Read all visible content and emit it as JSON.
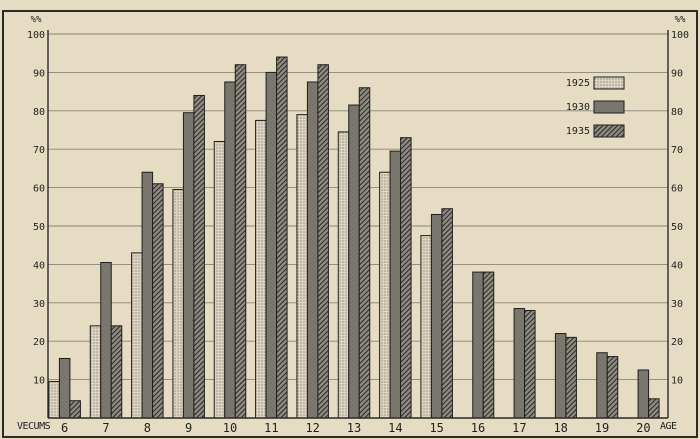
{
  "chart_data": {
    "type": "bar",
    "title": "",
    "xlabel": "AGE",
    "ylabel": "%%",
    "ylabel_right": "%%",
    "x_row_label": "VECUMS",
    "ylim": [
      0,
      100
    ],
    "yticks": [
      "",
      "10",
      "20",
      "30",
      "40",
      "50",
      "60",
      "70",
      "80",
      "90",
      "100"
    ],
    "yticks_right": [
      "",
      "10",
      "20",
      "30",
      "40",
      "50",
      "60",
      "70",
      "80",
      "90",
      "100"
    ],
    "grid": true,
    "legend_position": "top-right",
    "categories": [
      "6",
      "7",
      "8",
      "9",
      "10",
      "11",
      "12",
      "13",
      "14",
      "15",
      "16",
      "17",
      "18",
      "19",
      "20"
    ],
    "series": [
      {
        "name": "1925",
        "pattern": "dotted",
        "color": "#d8d0bd",
        "values": [
          9.5,
          24,
          43,
          59.5,
          72,
          77.5,
          79,
          74.5,
          64,
          47.5,
          null,
          null,
          null,
          null,
          null
        ]
      },
      {
        "name": "1930",
        "pattern": "solid",
        "color": "#7b776f",
        "values": [
          15.5,
          40.5,
          64,
          79.5,
          87.5,
          90,
          87.5,
          81.5,
          69.5,
          53,
          38,
          28.5,
          22,
          17,
          12.5
        ]
      },
      {
        "name": "1935",
        "pattern": "hatched",
        "color": "#5a5650",
        "values": [
          4.5,
          24,
          61,
          84,
          92,
          94,
          92,
          86,
          73,
          54.5,
          38,
          28,
          21,
          16,
          5
        ]
      }
    ]
  }
}
